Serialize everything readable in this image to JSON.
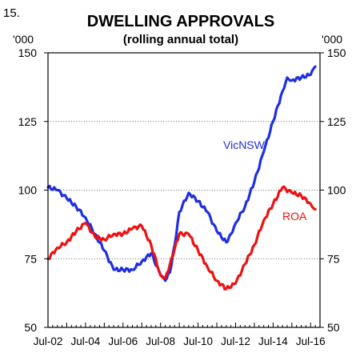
{
  "figure_number": "15.",
  "chart_data": {
    "type": "line",
    "title": "DWELLING APPROVALS",
    "subtitle": "(rolling annual total)",
    "left_unit": "'000",
    "right_unit": "'000",
    "ylim": [
      50,
      150
    ],
    "yticks": [
      50,
      75,
      100,
      125,
      150
    ],
    "xticks": [
      "Jul-02",
      "Jul-04",
      "Jul-06",
      "Jul-08",
      "Jul-10",
      "Jul-12",
      "Jul-14",
      "Jul-16"
    ],
    "grid": "dotted horizontal at 75, 100, 125",
    "series": [
      {
        "name": "VicNSW",
        "color": "#1f2fe0",
        "x": [
          "2002-07",
          "2003-01",
          "2003-07",
          "2004-01",
          "2004-07",
          "2005-01",
          "2005-07",
          "2006-01",
          "2006-07",
          "2007-01",
          "2007-07",
          "2008-01",
          "2008-07",
          "2008-10",
          "2009-01",
          "2009-04",
          "2009-07",
          "2010-01",
          "2010-07",
          "2011-01",
          "2011-07",
          "2012-01",
          "2012-04",
          "2012-07",
          "2013-01",
          "2013-07",
          "2014-01",
          "2014-07",
          "2015-01",
          "2015-04",
          "2015-07",
          "2016-01",
          "2016-07",
          "2016-10"
        ],
        "values": [
          101,
          100,
          97,
          94,
          90,
          84,
          78,
          71,
          71,
          71,
          74,
          77,
          69,
          67,
          70,
          80,
          92,
          99,
          96,
          92,
          85,
          81,
          84,
          88,
          94,
          103,
          114,
          125,
          136,
          141,
          140,
          141,
          142,
          145
        ]
      },
      {
        "name": "ROA",
        "color": "#ee1111",
        "x": [
          "2002-07",
          "2003-01",
          "2003-07",
          "2004-01",
          "2004-07",
          "2005-01",
          "2005-07",
          "2006-01",
          "2006-07",
          "2007-01",
          "2007-07",
          "2008-01",
          "2008-07",
          "2008-10",
          "2009-01",
          "2009-07",
          "2010-01",
          "2010-07",
          "2011-01",
          "2011-07",
          "2012-01",
          "2012-07",
          "2013-01",
          "2013-07",
          "2014-01",
          "2014-07",
          "2015-01",
          "2015-07",
          "2016-01",
          "2016-07",
          "2016-10"
        ],
        "values": [
          75,
          79,
          81,
          85,
          88,
          83,
          82,
          84,
          84,
          86,
          87,
          80,
          69,
          68,
          73,
          84,
          84,
          78,
          72,
          67,
          64,
          66,
          73,
          80,
          89,
          95,
          101,
          99,
          98,
          95,
          93
        ]
      }
    ]
  }
}
